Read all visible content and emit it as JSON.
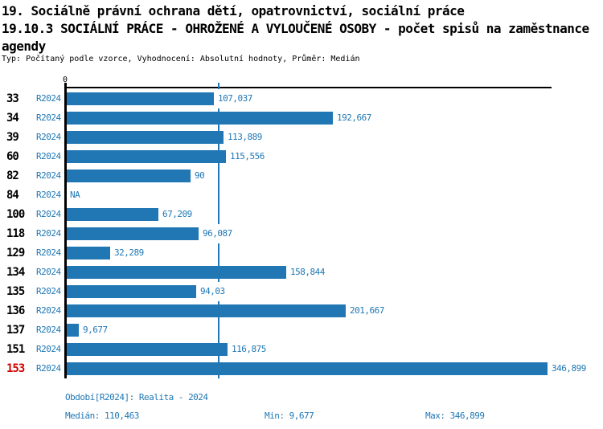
{
  "header": {
    "title_line1": "19. Sociálně právní ochrana dětí, opatrovnictví, sociální práce",
    "title_line2": "19.10.3 SOCIÁLNÍ PRÁCE - OHROŽENÉ A VYLOUČENÉ OSOBY - počet spisů na zaměstnance",
    "title_line3": "agendy",
    "subtitle": "Typ: Počítaný podle vzorce, Vyhodnocení: Absolutní hodnoty, Průměr: Medián"
  },
  "chart_data": {
    "type": "bar",
    "orientation": "horizontal",
    "title": "19.10.3 SOCIÁLNÍ PRÁCE - OHROŽENÉ A VYLOUČENÉ OSOBY - počet spisů na zaměstnance agendy",
    "categories": [
      "33",
      "34",
      "39",
      "60",
      "82",
      "84",
      "100",
      "118",
      "129",
      "134",
      "135",
      "136",
      "137",
      "151",
      "153"
    ],
    "series": [
      {
        "name": "R2024",
        "values": [
          107.037,
          192.667,
          113.889,
          115.556,
          90,
          null,
          67.209,
          96.087,
          32.289,
          158.844,
          94.03,
          201.667,
          9.677,
          116.875,
          346.899
        ]
      }
    ],
    "value_labels": [
      "107,037",
      "192,667",
      "113,889",
      "115,556",
      "90",
      "NA",
      "67,209",
      "96,087",
      "32,289",
      "158,844",
      "94,03",
      "201,667",
      "9,677",
      "116,875",
      "346,899"
    ],
    "zero_label": "0",
    "xlim": [
      0,
      350
    ],
    "grid": false,
    "legend": false,
    "median_value": 110.463,
    "median_line": true,
    "highlighted_category": "153",
    "min": 9.677,
    "max": 346.899
  },
  "footer": {
    "period": "Období[R2024]: Realita - 2024",
    "median": "Medián: 110,463",
    "min": "Min: 9,677",
    "max": "Max: 346,899"
  },
  "colors": {
    "bar": "#2077b4",
    "blue_text": "#1f77b4",
    "median_line": "#2077b4",
    "highlight_text": "#d40000",
    "axis": "#000000"
  }
}
